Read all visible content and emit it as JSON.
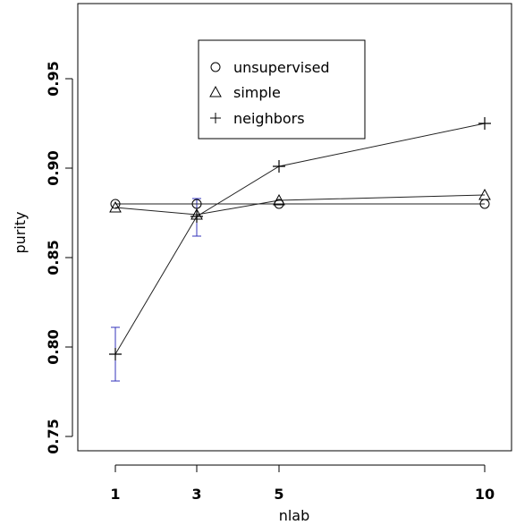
{
  "chart_data": {
    "type": "line",
    "xlabel": "nlab",
    "ylabel": "purity",
    "x": [
      1,
      3,
      5,
      10
    ],
    "xticks": [
      "1",
      "3",
      "5",
      "10"
    ],
    "yticks": [
      "0.75",
      "0.80",
      "0.85",
      "0.90",
      "0.95"
    ],
    "ylim": [
      0.75,
      0.95
    ],
    "grid": false,
    "legend_position": "top-center",
    "series": [
      {
        "name": "unsupervised",
        "marker": "circle",
        "values": [
          0.88,
          0.88,
          0.88,
          0.88
        ]
      },
      {
        "name": "simple",
        "marker": "triangle",
        "values": [
          0.878,
          0.874,
          0.882,
          0.885
        ]
      },
      {
        "name": "neighbors",
        "marker": "plus",
        "values": [
          0.796,
          0.873,
          0.901,
          0.925
        ]
      }
    ],
    "error_bars": [
      {
        "x": 1,
        "low": 0.781,
        "high": 0.811,
        "color": "#3333bb"
      },
      {
        "x": 3,
        "low": 0.862,
        "high": 0.883,
        "color": "#3333bb"
      }
    ]
  }
}
